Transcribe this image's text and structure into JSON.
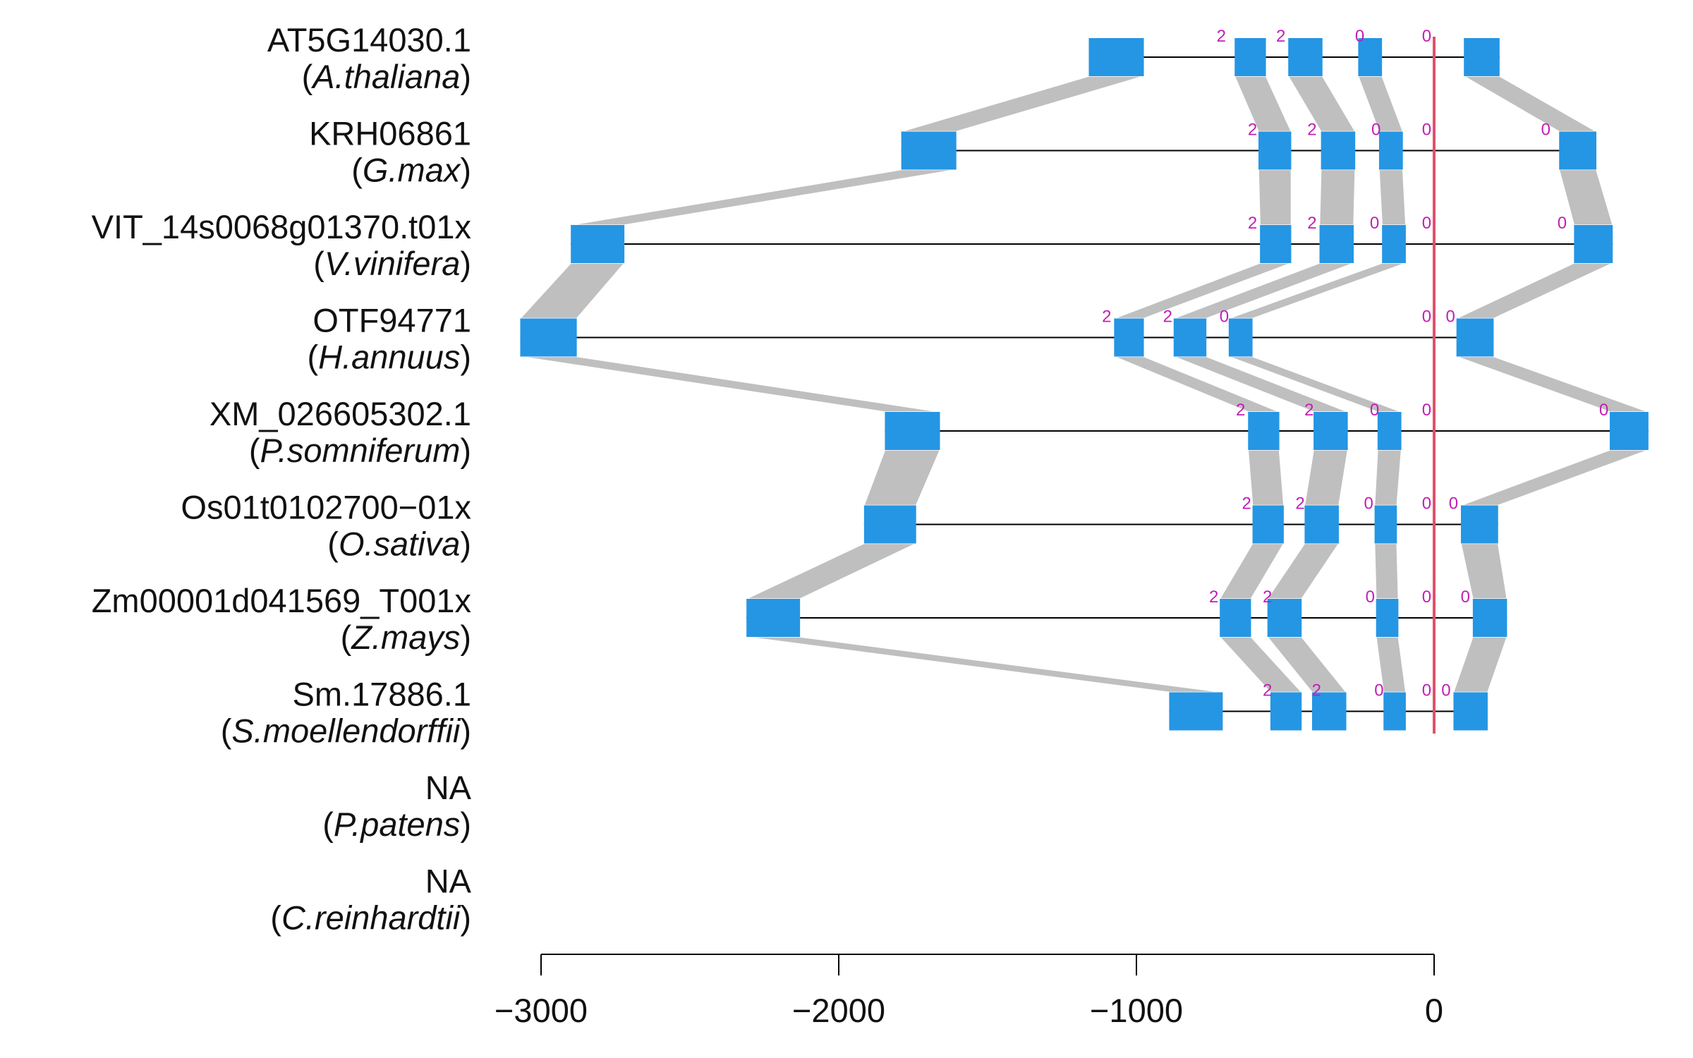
{
  "colors": {
    "exon": "#2596e4",
    "connector": "#bfbfbf",
    "intron_line": "#000000",
    "reference_line": "#e0506a",
    "phase_text": "#c21fb4",
    "axis": "#000000"
  },
  "axis": {
    "range": [
      -3000,
      700
    ],
    "ticks": [
      -3000,
      -2000,
      -1000,
      0
    ],
    "tick_labels": [
      "−3000",
      "−2000",
      "−1000",
      "0"
    ],
    "reference_value": 0
  },
  "genes": [
    {
      "id": "AT5G14030.1",
      "species": "A.thaliana",
      "exons": [
        [
          -1160,
          -975
        ],
        [
          -670,
          -565
        ],
        [
          -490,
          -375
        ],
        [
          -255,
          -175
        ],
        [
          100,
          220
        ]
      ],
      "phases": [
        {
          "x": -715,
          "label": "2"
        },
        {
          "x": -515,
          "label": "2"
        },
        {
          "x": -250,
          "label": "0"
        },
        {
          "x": -25,
          "label": "0"
        }
      ]
    },
    {
      "id": "KRH06861",
      "species": "G.max",
      "exons": [
        [
          -1790,
          -1605
        ],
        [
          -590,
          -480
        ],
        [
          -380,
          -265
        ],
        [
          -185,
          -105
        ],
        [
          420,
          545
        ]
      ],
      "phases": [
        {
          "x": -610,
          "label": "2"
        },
        {
          "x": -410,
          "label": "2"
        },
        {
          "x": -195,
          "label": "0"
        },
        {
          "x": -25,
          "label": "0"
        },
        {
          "x": 375,
          "label": "0"
        }
      ]
    },
    {
      "id": "VIT_14s0068g01370.t01x",
      "species": "V.vinifera",
      "exons": [
        [
          -2900,
          -2720
        ],
        [
          -585,
          -480
        ],
        [
          -385,
          -270
        ],
        [
          -175,
          -95
        ],
        [
          470,
          600
        ]
      ],
      "phases": [
        {
          "x": -610,
          "label": "2"
        },
        {
          "x": -410,
          "label": "2"
        },
        {
          "x": -200,
          "label": "0"
        },
        {
          "x": -25,
          "label": "0"
        },
        {
          "x": 430,
          "label": "0"
        }
      ]
    },
    {
      "id": "OTF94771",
      "species": "H.annuus",
      "exons": [
        [
          -3070,
          -2880
        ],
        [
          -1075,
          -975
        ],
        [
          -875,
          -765
        ],
        [
          -690,
          -610
        ],
        [
          75,
          200
        ]
      ],
      "phases": [
        {
          "x": -1100,
          "label": "2"
        },
        {
          "x": -895,
          "label": "2"
        },
        {
          "x": -705,
          "label": "0"
        },
        {
          "x": -25,
          "label": "0"
        },
        {
          "x": 55,
          "label": "0"
        }
      ]
    },
    {
      "id": "XM_026605302.1",
      "species": "P.somniferum",
      "exons": [
        [
          -1845,
          -1660
        ],
        [
          -625,
          -520
        ],
        [
          -405,
          -290
        ],
        [
          -190,
          -110
        ],
        [
          590,
          720
        ]
      ],
      "phases": [
        {
          "x": -650,
          "label": "2"
        },
        {
          "x": -420,
          "label": "2"
        },
        {
          "x": -200,
          "label": "0"
        },
        {
          "x": -25,
          "label": "0"
        },
        {
          "x": 570,
          "label": "0"
        }
      ]
    },
    {
      "id": "Os01t0102700−01x",
      "species": "O.sativa",
      "exons": [
        [
          -1915,
          -1740
        ],
        [
          -610,
          -505
        ],
        [
          -435,
          -320
        ],
        [
          -200,
          -125
        ],
        [
          90,
          215
        ]
      ],
      "phases": [
        {
          "x": -630,
          "label": "2"
        },
        {
          "x": -450,
          "label": "2"
        },
        {
          "x": -220,
          "label": "0"
        },
        {
          "x": -25,
          "label": "0"
        },
        {
          "x": 65,
          "label": "0"
        }
      ]
    },
    {
      "id": "Zm00001d041569_T001x",
      "species": "Z.mays",
      "exons": [
        [
          -2310,
          -2130
        ],
        [
          -720,
          -615
        ],
        [
          -560,
          -445
        ],
        [
          -195,
          -120
        ],
        [
          130,
          245
        ]
      ],
      "phases": [
        {
          "x": -740,
          "label": "2"
        },
        {
          "x": -560,
          "label": "2"
        },
        {
          "x": -215,
          "label": "0"
        },
        {
          "x": -25,
          "label": "0"
        },
        {
          "x": 105,
          "label": "0"
        }
      ]
    },
    {
      "id": "Sm.17886.1",
      "species": "S.moellendorffii",
      "exons": [
        [
          -890,
          -710
        ],
        [
          -550,
          -445
        ],
        [
          -410,
          -295
        ],
        [
          -170,
          -95
        ],
        [
          65,
          180
        ]
      ],
      "phases": [
        {
          "x": -560,
          "label": "2"
        },
        {
          "x": -395,
          "label": "2"
        },
        {
          "x": -185,
          "label": "0"
        },
        {
          "x": -25,
          "label": "0"
        },
        {
          "x": 40,
          "label": "0"
        }
      ]
    },
    {
      "id": "NA",
      "species": "P.patens",
      "exons": [],
      "phases": []
    },
    {
      "id": "NA",
      "species": "C.reinhardtii",
      "exons": [],
      "phases": []
    }
  ]
}
